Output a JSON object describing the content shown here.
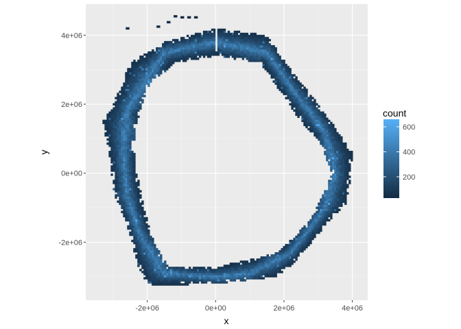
{
  "chart_data": {
    "type": "heatmap",
    "subtype": "2d-bin-count",
    "xlabel": "x",
    "ylabel": "y",
    "xlim": [
      -3800000,
      4450000
    ],
    "ylim": [
      -3680000,
      4900000
    ],
    "x_ticks": [
      {
        "value": -2000000,
        "label": "-2e+06"
      },
      {
        "value": 0,
        "label": "0e+00"
      },
      {
        "value": 2000000,
        "label": "2e+06"
      },
      {
        "value": 4000000,
        "label": "4e+06"
      }
    ],
    "y_ticks": [
      {
        "value": -2000000,
        "label": "-2e+06"
      },
      {
        "value": 0,
        "label": "0e+00"
      },
      {
        "value": 2000000,
        "label": "2e+06"
      },
      {
        "value": 4000000,
        "label": "4e+06"
      }
    ],
    "grid": true,
    "legend": {
      "title": "count",
      "position": "right",
      "range": [
        30,
        660
      ],
      "ticks": [
        {
          "value": 200,
          "label": "200"
        },
        {
          "value": 400,
          "label": "400"
        },
        {
          "value": 600,
          "label": "600"
        }
      ],
      "low_color": "#132B43",
      "high_color": "#56B1F7"
    },
    "ring_outer": [
      [
        -3000000,
        2000000
      ],
      [
        -2500000,
        3200000
      ],
      [
        -1500000,
        3800000
      ],
      [
        0,
        4200000
      ],
      [
        1500000,
        4000000
      ],
      [
        2200000,
        3000000
      ],
      [
        3000000,
        2000000
      ],
      [
        3600000,
        1200000
      ],
      [
        4000000,
        600000
      ],
      [
        3900000,
        -500000
      ],
      [
        3800000,
        -900000
      ],
      [
        3300000,
        -1400000
      ],
      [
        2800000,
        -2000000
      ],
      [
        2400000,
        -2500000
      ],
      [
        1800000,
        -3000000
      ],
      [
        0,
        -3200000
      ],
      [
        -2000000,
        -3250000
      ],
      [
        -2300000,
        -2600000
      ],
      [
        -2600000,
        -1500000
      ],
      [
        -3000000,
        -500000
      ],
      [
        -3100000,
        500000
      ],
      [
        -3300000,
        1500000
      ]
    ],
    "ring_inner": [
      [
        -2300000,
        1500000
      ],
      [
        -2000000,
        2500000
      ],
      [
        -1200000,
        3200000
      ],
      [
        0,
        3400000
      ],
      [
        1300000,
        3200000
      ],
      [
        1800000,
        2500000
      ],
      [
        2500000,
        1500000
      ],
      [
        3100000,
        800000
      ],
      [
        3400000,
        0
      ],
      [
        3200000,
        -500000
      ],
      [
        2800000,
        -1300000
      ],
      [
        2200000,
        -1900000
      ],
      [
        1800000,
        -2300000
      ],
      [
        1000000,
        -2500000
      ],
      [
        0,
        -2700000
      ],
      [
        -1400000,
        -2700000
      ],
      [
        -1800000,
        -2000000
      ],
      [
        -2100000,
        -1000000
      ],
      [
        -2300000,
        0
      ],
      [
        -2400000,
        800000
      ]
    ],
    "density_peak": [
      [
        -2600000,
        1800000
      ],
      [
        -1500000,
        3500000
      ],
      [
        0,
        3800000
      ],
      [
        1500000,
        3500000
      ],
      [
        2200000,
        2500000
      ],
      [
        3200000,
        1200000
      ],
      [
        3500000,
        0
      ],
      [
        3200000,
        -1000000
      ],
      [
        2200000,
        -2300000
      ],
      [
        1000000,
        -2900000
      ],
      [
        0,
        -3000000
      ],
      [
        -1500000,
        -2900000
      ],
      [
        -2200000,
        -1800000
      ],
      [
        -2600000,
        -600000
      ],
      [
        -2700000,
        600000
      ]
    ],
    "scattered_bins": [
      [
        -1200000,
        4550000
      ],
      [
        -1000000,
        4520000
      ],
      [
        -800000,
        4520000
      ],
      [
        -600000,
        4520000
      ],
      [
        -1400000,
        4380000
      ],
      [
        -1700000,
        4250000
      ],
      [
        -2600000,
        4200000
      ]
    ],
    "gap_at_x": 0,
    "gap_y_range": [
      3500000,
      4200000
    ]
  }
}
